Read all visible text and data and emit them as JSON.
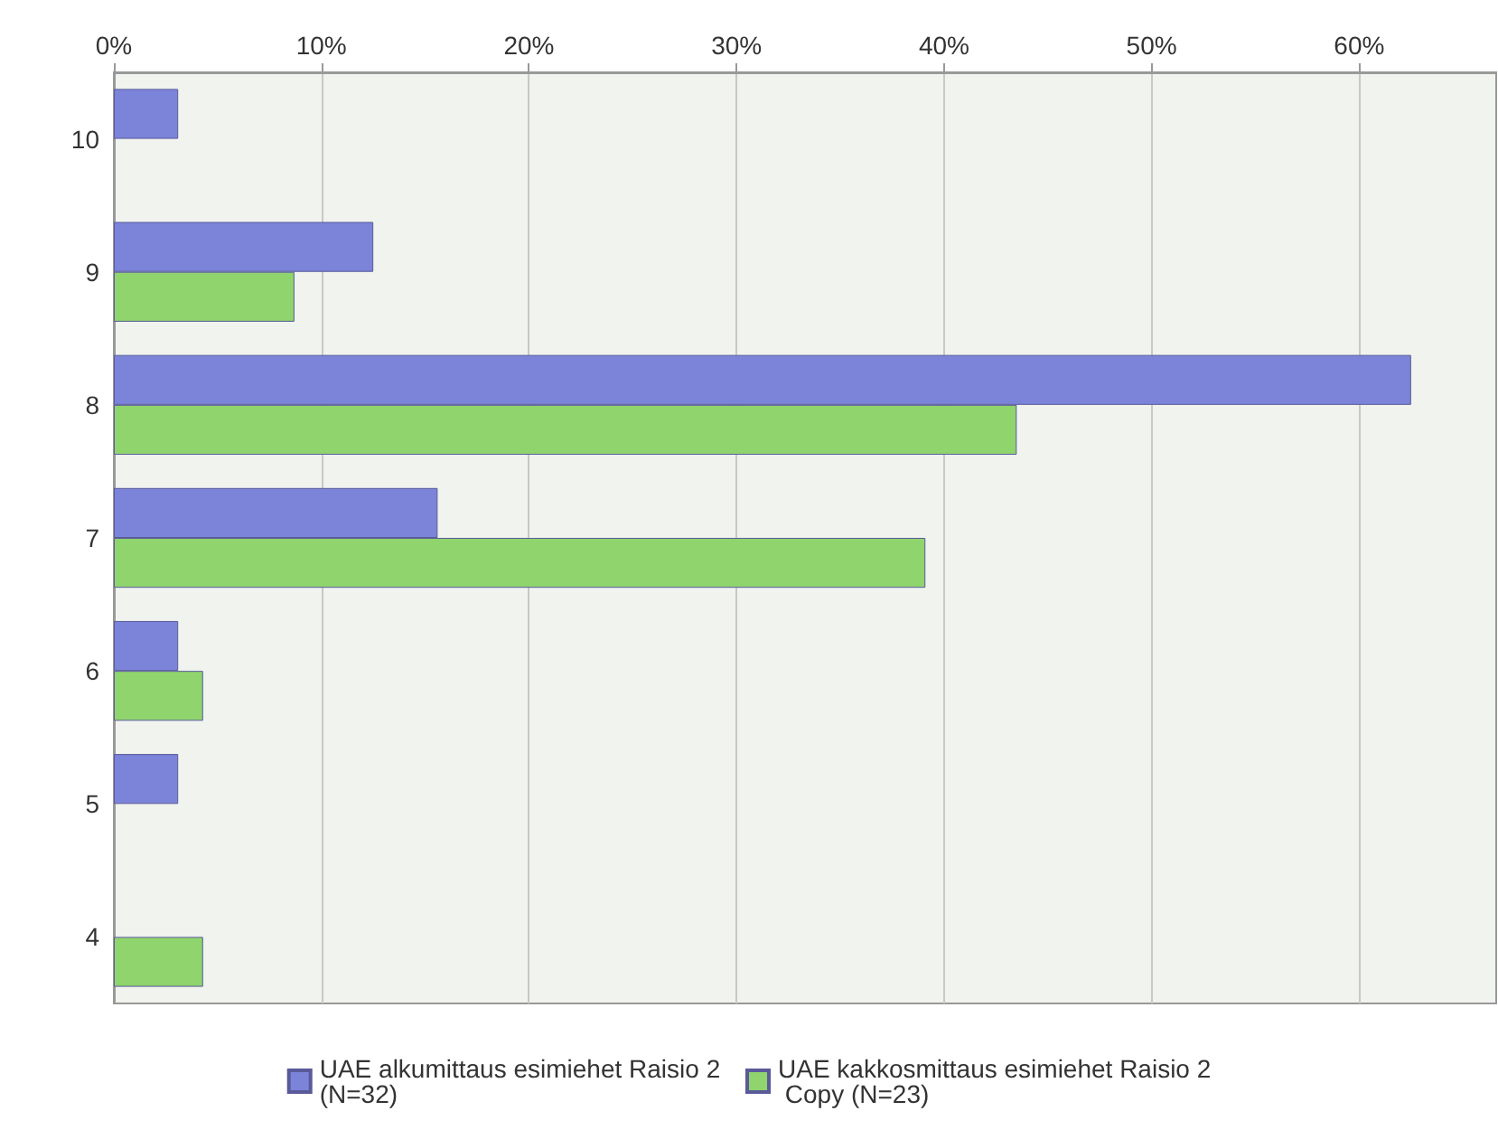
{
  "chart_data": {
    "type": "bar",
    "orientation": "horizontal",
    "categories": [
      "10",
      "9",
      "8",
      "7",
      "6",
      "5",
      "4"
    ],
    "series": [
      {
        "name": "UAE alkumittaus esimiehet Raisio 2 (N=32)",
        "color": "#7b84d8",
        "values": [
          3.1,
          12.5,
          62.5,
          15.6,
          3.1,
          3.1,
          null
        ]
      },
      {
        "name": "UAE kakkosmittaus esimiehet Raisio 2 Copy (N=23)",
        "color": "#8fd46c",
        "values": [
          null,
          8.7,
          43.5,
          39.1,
          4.3,
          null,
          4.3
        ]
      }
    ],
    "xlim": [
      0,
      66.6
    ],
    "xticks": [
      {
        "value": 0,
        "label": "0%"
      },
      {
        "value": 10,
        "label": "10%"
      },
      {
        "value": 20,
        "label": "20%"
      },
      {
        "value": 30,
        "label": "30%"
      },
      {
        "value": 40,
        "label": "40%"
      },
      {
        "value": 50,
        "label": "50%"
      },
      {
        "value": 60,
        "label": "60%"
      }
    ],
    "grid": "x",
    "legend": "bottom"
  }
}
